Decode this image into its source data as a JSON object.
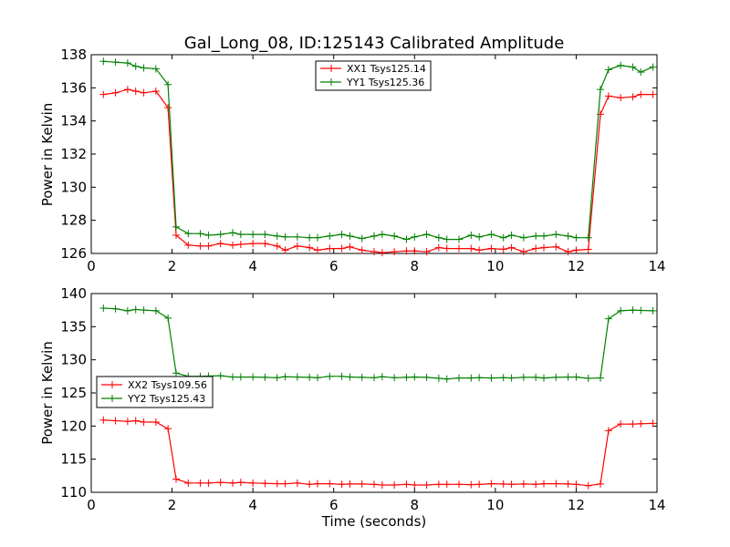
{
  "chart_data": [
    {
      "type": "line",
      "title": "Gal_Long_08, ID:125143 Calibrated Amplitude",
      "xlabel": "",
      "ylabel": "Power in Kelvin",
      "xlim": [
        0,
        14
      ],
      "ylim": [
        126,
        138
      ],
      "xticks": [
        0,
        2,
        4,
        6,
        8,
        10,
        12,
        14
      ],
      "yticks": [
        126,
        128,
        130,
        132,
        134,
        136,
        138
      ],
      "legend_position": "top-center",
      "grid": false,
      "x": [
        0.3,
        0.6,
        0.9,
        1.1,
        1.3,
        1.6,
        1.9,
        2.1,
        2.4,
        2.7,
        2.9,
        3.2,
        3.5,
        3.7,
        4.0,
        4.3,
        4.6,
        4.8,
        5.1,
        5.4,
        5.6,
        5.9,
        6.2,
        6.4,
        6.7,
        7.0,
        7.2,
        7.5,
        7.8,
        8.0,
        8.3,
        8.6,
        8.8,
        9.1,
        9.4,
        9.6,
        9.9,
        10.2,
        10.4,
        10.7,
        11.0,
        11.2,
        11.5,
        11.8,
        12.0,
        12.3,
        12.6,
        12.8,
        13.1,
        13.4,
        13.6,
        13.9
      ],
      "series": [
        {
          "name": "XX1 Tsys125.14",
          "color": "#ff0000",
          "values": [
            135.6,
            135.7,
            135.9,
            135.8,
            135.7,
            135.8,
            134.8,
            127.1,
            126.5,
            126.45,
            126.45,
            126.6,
            126.5,
            126.55,
            126.6,
            126.6,
            126.45,
            126.2,
            126.45,
            126.35,
            126.2,
            126.3,
            126.3,
            126.4,
            126.2,
            126.1,
            126.05,
            126.1,
            126.15,
            126.15,
            126.1,
            126.35,
            126.3,
            126.3,
            126.3,
            126.2,
            126.3,
            126.25,
            126.35,
            126.1,
            126.3,
            126.35,
            126.4,
            126.1,
            126.2,
            126.25,
            134.4,
            135.5,
            135.4,
            135.45,
            135.6,
            135.6
          ]
        },
        {
          "name": "YY1 Tsys125.36",
          "color": "#008000",
          "values": [
            137.6,
            137.55,
            137.5,
            137.3,
            137.2,
            137.15,
            136.2,
            127.6,
            127.2,
            127.2,
            127.1,
            127.15,
            127.25,
            127.15,
            127.15,
            127.15,
            127.05,
            127.0,
            127.0,
            126.95,
            126.95,
            127.05,
            127.15,
            127.05,
            126.9,
            127.05,
            127.15,
            127.05,
            126.85,
            127.0,
            127.15,
            126.95,
            126.85,
            126.85,
            127.1,
            127.0,
            127.15,
            126.95,
            127.1,
            126.95,
            127.05,
            127.05,
            127.15,
            127.05,
            126.95,
            126.95,
            135.9,
            137.1,
            137.35,
            137.25,
            136.95,
            137.25
          ]
        }
      ]
    },
    {
      "type": "line",
      "title": "",
      "xlabel": "Time (seconds)",
      "ylabel": "Power in Kelvin",
      "xlim": [
        0,
        14
      ],
      "ylim": [
        110,
        140
      ],
      "xticks": [
        0,
        2,
        4,
        6,
        8,
        10,
        12,
        14
      ],
      "yticks": [
        110,
        115,
        120,
        125,
        130,
        135,
        140
      ],
      "legend_position": "center-left",
      "grid": false,
      "x": [
        0.3,
        0.6,
        0.9,
        1.1,
        1.3,
        1.6,
        1.9,
        2.1,
        2.4,
        2.7,
        2.9,
        3.2,
        3.5,
        3.7,
        4.0,
        4.3,
        4.6,
        4.8,
        5.1,
        5.4,
        5.6,
        5.9,
        6.2,
        6.4,
        6.7,
        7.0,
        7.2,
        7.5,
        7.8,
        8.0,
        8.3,
        8.6,
        8.8,
        9.1,
        9.4,
        9.6,
        9.9,
        10.2,
        10.4,
        10.7,
        11.0,
        11.2,
        11.5,
        11.8,
        12.0,
        12.3,
        12.6,
        12.8,
        13.1,
        13.4,
        13.6,
        13.9
      ],
      "series": [
        {
          "name": "XX2 Tsys109.56",
          "color": "#ff0000",
          "values": [
            120.9,
            120.8,
            120.7,
            120.8,
            120.6,
            120.6,
            119.6,
            112.0,
            111.4,
            111.4,
            111.4,
            111.5,
            111.4,
            111.5,
            111.4,
            111.35,
            111.3,
            111.3,
            111.4,
            111.2,
            111.3,
            111.3,
            111.2,
            111.25,
            111.25,
            111.2,
            111.1,
            111.1,
            111.2,
            111.1,
            111.1,
            111.2,
            111.2,
            111.2,
            111.15,
            111.2,
            111.3,
            111.25,
            111.2,
            111.25,
            111.2,
            111.3,
            111.3,
            111.25,
            111.2,
            111.0,
            111.25,
            119.3,
            120.3,
            120.3,
            120.35,
            120.4
          ]
        },
        {
          "name": "YY2 Tsys125.43",
          "color": "#008000",
          "values": [
            137.8,
            137.7,
            137.4,
            137.6,
            137.5,
            137.4,
            136.3,
            128.0,
            127.5,
            127.5,
            127.55,
            127.6,
            127.4,
            127.4,
            127.4,
            127.35,
            127.3,
            127.45,
            127.4,
            127.35,
            127.3,
            127.5,
            127.5,
            127.4,
            127.35,
            127.3,
            127.45,
            127.3,
            127.35,
            127.4,
            127.35,
            127.2,
            127.1,
            127.25,
            127.25,
            127.3,
            127.25,
            127.3,
            127.25,
            127.35,
            127.35,
            127.25,
            127.35,
            127.4,
            127.4,
            127.2,
            127.25,
            136.2,
            137.4,
            137.5,
            137.45,
            137.4
          ]
        }
      ]
    }
  ]
}
